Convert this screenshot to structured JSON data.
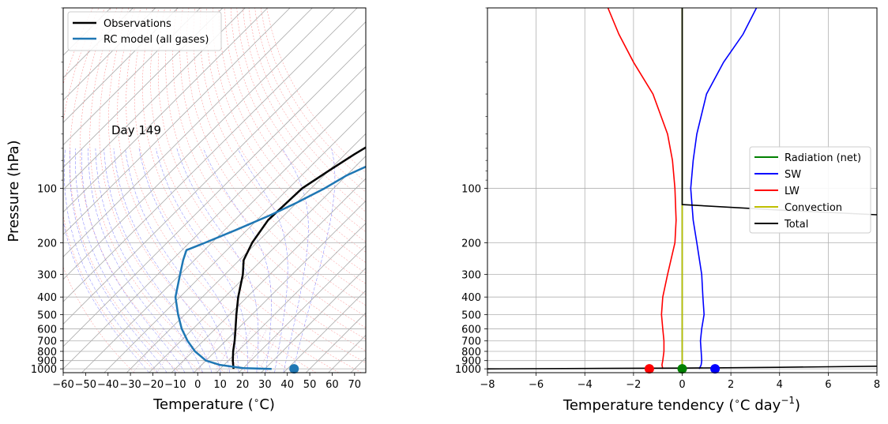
{
  "chart_data": [
    {
      "type": "line",
      "subtype": "skew-T log-p diagram",
      "xlabel": "Temperature ($^\\circ$C)",
      "xlabel_text": "Temperature (",
      "xlabel_unit": "C)",
      "ylabel": "Pressure (hPa)",
      "yscale": "log",
      "xlim": [
        -60,
        75
      ],
      "ylim": [
        1050,
        10
      ],
      "x_ticks": [
        -60,
        -50,
        -40,
        -30,
        -20,
        -10,
        0,
        10,
        20,
        30,
        40,
        50,
        60,
        70
      ],
      "y_ticks": [
        100,
        200,
        300,
        400,
        500,
        600,
        700,
        800,
        900,
        1000
      ],
      "grid": true,
      "annotation": "Day 149",
      "legend_position": "top-left",
      "series": [
        {
          "name": "Observations",
          "color": "#000000",
          "points": [
            [
              16,
              1000
            ],
            [
              12,
              900
            ],
            [
              8,
              800
            ],
            [
              4,
              700
            ],
            [
              -1,
              600
            ],
            [
              -7,
              500
            ],
            [
              -14,
              400
            ],
            [
              -22,
              300
            ],
            [
              -28,
              250
            ],
            [
              -32,
              200
            ],
            [
              -35,
              150
            ],
            [
              -34,
              100
            ],
            [
              -30,
              80
            ],
            [
              -26,
              65
            ],
            [
              -20,
              50
            ],
            [
              -5,
              30
            ],
            [
              10,
              20
            ],
            [
              25,
              14
            ],
            [
              37,
              10
            ]
          ]
        },
        {
          "name": "RC model (all gases)",
          "color": "#1f77b4",
          "points": [
            [
              33,
              1000
            ],
            [
              20,
              990
            ],
            [
              8,
              950
            ],
            [
              0,
              900
            ],
            [
              -9,
              800
            ],
            [
              -17,
              700
            ],
            [
              -25,
              600
            ],
            [
              -33,
              500
            ],
            [
              -42,
              400
            ],
            [
              -50,
              300
            ],
            [
              -55,
              250
            ],
            [
              -58,
              220
            ],
            [
              -53,
              200
            ],
            [
              -45,
              170
            ],
            [
              -36,
              140
            ],
            [
              -30,
              120
            ],
            [
              -24,
              100
            ],
            [
              -20,
              85
            ],
            [
              -12,
              70
            ],
            [
              2,
              50
            ],
            [
              16,
              35
            ],
            [
              32,
              23
            ],
            [
              46,
              14
            ],
            [
              54,
              10
            ]
          ]
        }
      ],
      "surface_marker": {
        "temperature": 43,
        "pressure": 1000,
        "color": "#1f77b4"
      }
    },
    {
      "type": "line",
      "xlabel": "Temperature tendency ($^\\circ$C day$^{-1}$)",
      "xlabel_text": "Temperature tendency (",
      "xlabel_unit": "C day",
      "xlabel_sup": "−1",
      "xlabel_close": ")",
      "ylabel": "",
      "yscale": "log",
      "xlim": [
        -8,
        8
      ],
      "ylim": [
        1050,
        10
      ],
      "x_ticks": [
        -8,
        -6,
        -4,
        -2,
        0,
        2,
        4,
        6,
        8
      ],
      "y_ticks": [
        100,
        200,
        300,
        400,
        500,
        600,
        700,
        800,
        900,
        1000
      ],
      "grid": true,
      "legend_position": "center-right",
      "series": [
        {
          "name": "Radiation (net)",
          "color": "#008000",
          "points": [
            [
              0,
              1000
            ],
            [
              0,
              10
            ]
          ]
        },
        {
          "name": "SW",
          "color": "#0000ff",
          "points": [
            [
              0.7,
              1000
            ],
            [
              0.78,
              950
            ],
            [
              0.8,
              900
            ],
            [
              0.78,
              800
            ],
            [
              0.75,
              700
            ],
            [
              0.8,
              600
            ],
            [
              0.9,
              500
            ],
            [
              0.85,
              400
            ],
            [
              0.8,
              300
            ],
            [
              0.6,
              200
            ],
            [
              0.45,
              150
            ],
            [
              0.35,
              100
            ],
            [
              0.45,
              70
            ],
            [
              0.6,
              50
            ],
            [
              1.0,
              30
            ],
            [
              1.7,
              20
            ],
            [
              2.5,
              14
            ],
            [
              3.05,
              10
            ]
          ]
        },
        {
          "name": "LW",
          "color": "#ff0000",
          "points": [
            [
              -0.8,
              1000
            ],
            [
              -0.83,
              950
            ],
            [
              -0.8,
              900
            ],
            [
              -0.75,
              800
            ],
            [
              -0.75,
              700
            ],
            [
              -0.8,
              600
            ],
            [
              -0.85,
              500
            ],
            [
              -0.8,
              400
            ],
            [
              -0.6,
              300
            ],
            [
              -0.3,
              200
            ],
            [
              -0.25,
              150
            ],
            [
              -0.3,
              100
            ],
            [
              -0.4,
              70
            ],
            [
              -0.6,
              50
            ],
            [
              -1.2,
              30
            ],
            [
              -2.0,
              20
            ],
            [
              -2.6,
              14
            ],
            [
              -3.05,
              10
            ]
          ]
        },
        {
          "name": "Convection",
          "color": "#bfbf00",
          "points": [
            [
              0,
              1000
            ],
            [
              0,
              10
            ]
          ]
        },
        {
          "name": "Total",
          "color": "#000000",
          "segments": [
            [
              [
                -8,
                1000
              ],
              [
                -4,
                995
              ],
              [
                0,
                990
              ],
              [
                4,
                980
              ],
              [
                8,
                967
              ]
            ],
            [
              [
                0,
                10
              ],
              [
                0,
                123
              ],
              [
                4,
                132
              ],
              [
                8,
                140
              ]
            ]
          ]
        }
      ],
      "surface_markers": [
        {
          "value": -1.35,
          "pressure": 1000,
          "color": "#ff0000"
        },
        {
          "value": 0,
          "pressure": 1000,
          "color": "#008000"
        },
        {
          "value": 1.35,
          "pressure": 1000,
          "color": "#0000ff"
        }
      ]
    }
  ]
}
